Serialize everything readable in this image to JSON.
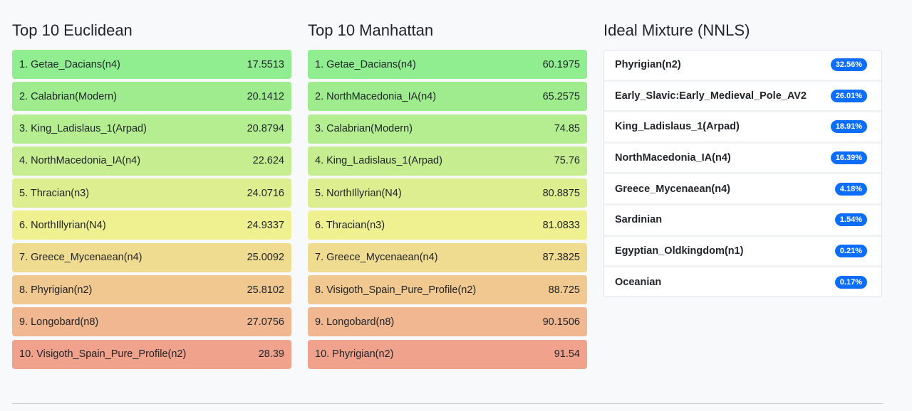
{
  "euclidean": {
    "title": "Top 10 Euclidean",
    "rows": [
      {
        "name": "1. Getae_Dacians(n4)",
        "value": "17.5513",
        "color": "#90ee90"
      },
      {
        "name": "2. Calabrian(Modern)",
        "value": "20.1412",
        "color": "#9fec8f"
      },
      {
        "name": "3. King_Ladislaus_1(Arpad)",
        "value": "20.8794",
        "color": "#b5ee90"
      },
      {
        "name": "4. NorthMacedonia_IA(n4)",
        "value": "22.624",
        "color": "#c6ee90"
      },
      {
        "name": "5. Thracian(n3)",
        "value": "24.0716",
        "color": "#dcee90"
      },
      {
        "name": "6. NorthIllyrian(N4)",
        "value": "24.9337",
        "color": "#eff090"
      },
      {
        "name": "7. Greece_Mycenaean(n4)",
        "value": "25.0092",
        "color": "#f0dc90"
      },
      {
        "name": "8. Phyrigian(n2)",
        "value": "25.8102",
        "color": "#f0c890"
      },
      {
        "name": "9. Longobard(n8)",
        "value": "27.0756",
        "color": "#f0b790"
      },
      {
        "name": "10. Visigoth_Spain_Pure_Profile(n2)",
        "value": "28.39",
        "color": "#f0a28d"
      }
    ]
  },
  "manhattan": {
    "title": "Top 10 Manhattan",
    "rows": [
      {
        "name": "1. Getae_Dacians(n4)",
        "value": "60.1975",
        "color": "#90ee90"
      },
      {
        "name": "2. NorthMacedonia_IA(n4)",
        "value": "65.2575",
        "color": "#9fec8f"
      },
      {
        "name": "3. Calabrian(Modern)",
        "value": "74.85",
        "color": "#b5ee90"
      },
      {
        "name": "4. King_Ladislaus_1(Arpad)",
        "value": "75.76",
        "color": "#c6ee90"
      },
      {
        "name": "5. NorthIllyrian(N4)",
        "value": "80.8875",
        "color": "#dcee90"
      },
      {
        "name": "6. Thracian(n3)",
        "value": "81.0833",
        "color": "#eff090"
      },
      {
        "name": "7. Greece_Mycenaean(n4)",
        "value": "87.3825",
        "color": "#f0dc90"
      },
      {
        "name": "8. Visigoth_Spain_Pure_Profile(n2)",
        "value": "88.725",
        "color": "#f0c890"
      },
      {
        "name": "9. Longobard(n8)",
        "value": "90.1506",
        "color": "#f0b790"
      },
      {
        "name": "10. Phyrigian(n2)",
        "value": "91.54",
        "color": "#f0a28d"
      }
    ]
  },
  "mixture": {
    "title": "Ideal Mixture (NNLS)",
    "badge_color": "#0d6efd",
    "rows": [
      {
        "name": "Phyrigian(n2)",
        "percent": "32.56%"
      },
      {
        "name": "Early_Slavic:Early_Medieval_Pole_AV2",
        "percent": "26.01%"
      },
      {
        "name": "King_Ladislaus_1(Arpad)",
        "percent": "18.91%"
      },
      {
        "name": "NorthMacedonia_IA(n4)",
        "percent": "16.39%"
      },
      {
        "name": "Greece_Mycenaean(n4)",
        "percent": "4.18%"
      },
      {
        "name": "Sardinian",
        "percent": "1.54%"
      },
      {
        "name": "Egyptian_Oldkingdom(n1)",
        "percent": "0.21%"
      },
      {
        "name": "Oceanian",
        "percent": "0.17%"
      }
    ]
  }
}
